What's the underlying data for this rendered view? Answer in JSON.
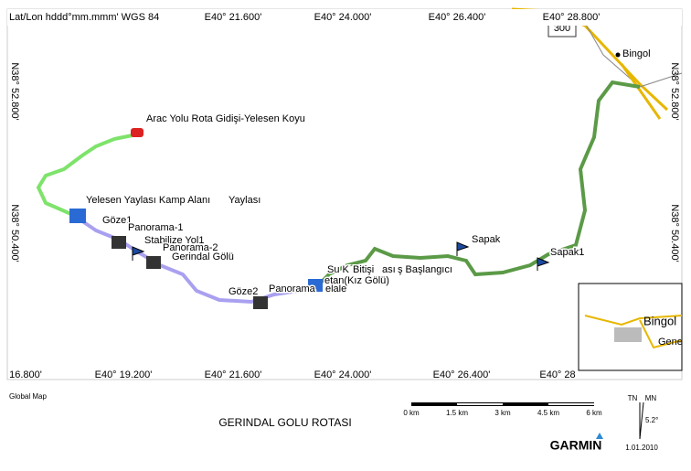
{
  "map": {
    "header": "Lat/Lon hddd°mm.mmm' WGS 84",
    "top_labels": [
      "E40° 21.600'",
      "E40° 24.000'",
      "E40° 26.400'",
      "E40° 28.800'"
    ],
    "bottom_labels": [
      "16.800'",
      "E40° 19.200'",
      "E40° 21.600'",
      "E40° 24.000'",
      "E40° 26.400'",
      "E40° 28"
    ],
    "left_labels": [
      "N38° 52.800'",
      "N38° 50.400'"
    ],
    "right_labels": [
      "N38° 52.800'",
      "N38° 50.400'"
    ],
    "road_sign": "300",
    "city": "Bingol",
    "waypoints": [
      "Arac Yolu Rota Gidişi-Yelesen Koyu",
      "Yelesen Yaylası Kamp Alanı",
      "Yaylası",
      "Göze1",
      "Panorama-1",
      "Stabilize Yol1",
      "Panorama-2",
      "Gerindal Gölü",
      "Göze2",
      "Panorama",
      "elale",
      "Su K",
      "Bitişi",
      "ası",
      "ş Başlangıcı",
      "etan(Kız Gölü)",
      "Sapak",
      "Sapak1"
    ],
    "inset": {
      "labels": [
        "Bingol",
        "Gene"
      ]
    }
  },
  "footer": {
    "source": "Global Map",
    "scale": [
      "0 km",
      "1.5 km",
      "3 km",
      "4.5 km",
      "6 km"
    ],
    "title": "GERINDAL GOLU ROTASI",
    "brand": "GARMIN",
    "north": [
      "TN",
      "MN"
    ],
    "declination": "5.2°",
    "date": "1.01.2010"
  }
}
